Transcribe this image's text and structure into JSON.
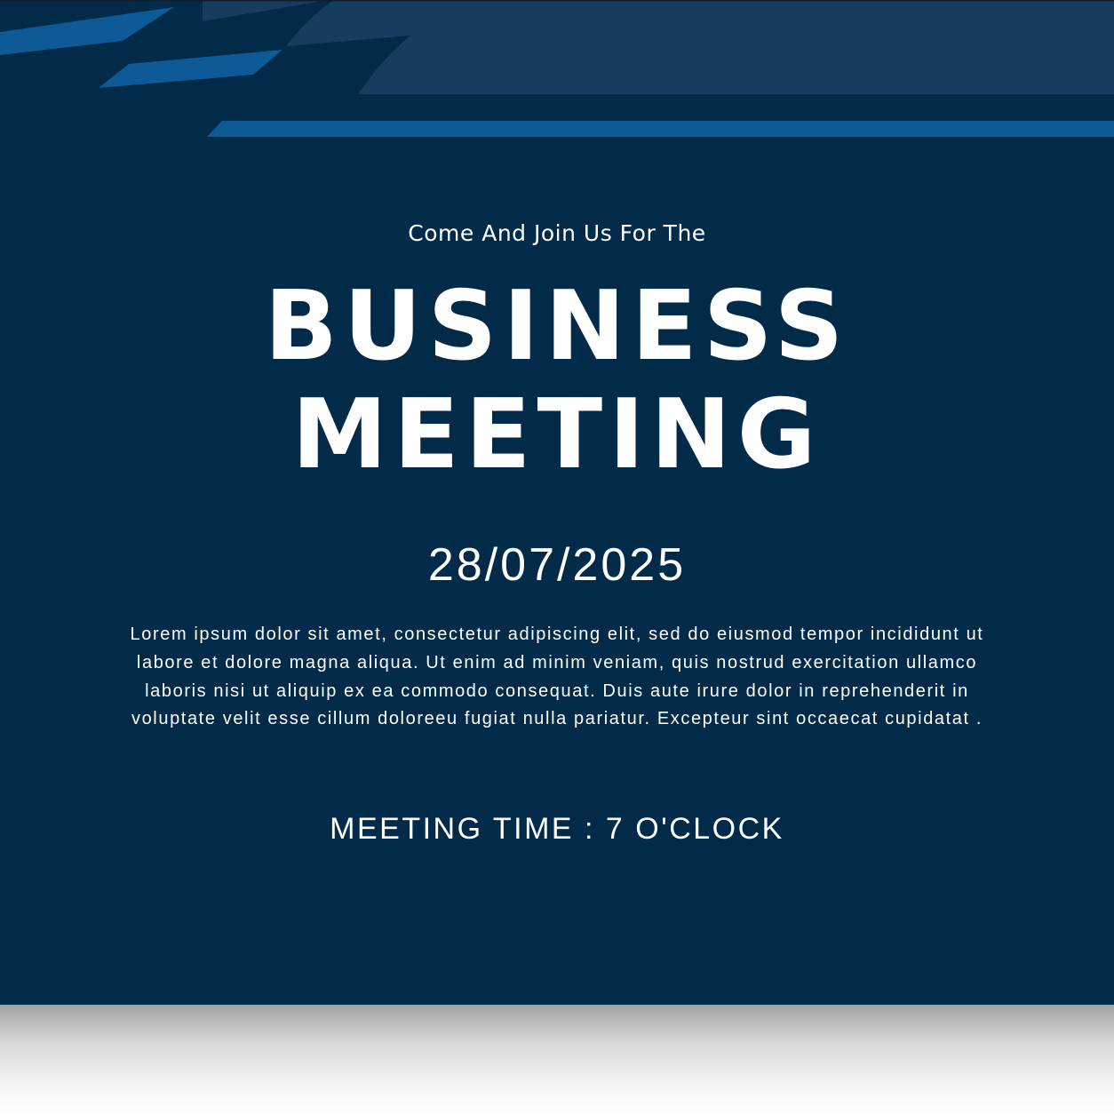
{
  "colors": {
    "background": "#022a49",
    "accent_blue": "#0e5a97",
    "accent_light": "#163d5f",
    "text": "#ffffff"
  },
  "invite": {
    "subtitle": "Come And Join Us For The",
    "title_line_1": "BUSINESS",
    "title_line_2": "MEETING",
    "date": "28/07/2025",
    "body": "Lorem ipsum dolor sit amet, consectetur adipiscing elit, sed do eiusmod tempor incididunt ut labore et dolore magna aliqua. Ut enim ad minim veniam, quis nostrud exercitation ullamco laboris nisi ut aliquip ex ea commodo consequat. Duis aute irure dolor in reprehenderit in voluptate velit esse cillum doloreeu fugiat nulla pariatur. Excepteur sint occaecat cupidatat .",
    "meeting_time": "MEETING TIME : 7 O'CLOCK"
  }
}
